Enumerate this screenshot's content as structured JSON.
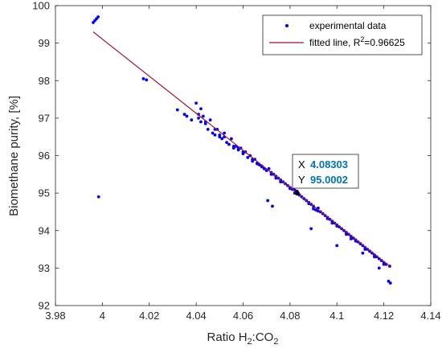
{
  "chart_data": {
    "type": "scatter",
    "xlabel": "Ratio H",
    "xlabel_sub": "2",
    "xlabel_mid": ":CO",
    "xlabel_sub2": "2",
    "ylabel": "Biomethane purity, [%]",
    "xlim": [
      3.98,
      4.14
    ],
    "ylim": [
      92,
      100
    ],
    "x_ticks": [
      3.98,
      4,
      4.02,
      4.04,
      4.06,
      4.08,
      4.1,
      4.12,
      4.14
    ],
    "x_tick_labels": [
      "3.98",
      "4",
      "4.02",
      "4.04",
      "4.06",
      "4.08",
      "4.1",
      "4.12",
      "4.14"
    ],
    "y_ticks": [
      92,
      93,
      94,
      95,
      96,
      97,
      98,
      99,
      100
    ],
    "y_tick_labels": [
      "92",
      "93",
      "94",
      "95",
      "96",
      "97",
      "98",
      "99",
      "100"
    ],
    "grid": false,
    "legend_position": "top-right",
    "series": [
      {
        "name": "experimental data",
        "kind": "scatter",
        "color": "#0000ff",
        "x": [
          3.9961,
          3.9968,
          3.9975,
          3.9982,
          3.9984,
          4.0175,
          4.0188,
          4.032,
          4.035,
          4.036,
          4.038,
          4.04,
          4.041,
          4.042,
          4.043,
          4.044,
          4.045,
          4.046,
          4.047,
          4.048,
          4.049,
          4.05,
          4.051,
          4.052,
          4.053,
          4.054,
          4.055,
          4.056,
          4.057,
          4.058,
          4.059,
          4.06,
          4.061,
          4.062,
          4.063,
          4.064,
          4.065,
          4.066,
          4.067,
          4.068,
          4.069,
          4.07,
          4.071,
          4.072,
          4.073,
          4.074,
          4.075,
          4.076,
          4.077,
          4.078,
          4.079,
          4.08,
          4.081,
          4.082,
          4.083,
          4.084,
          4.085,
          4.086,
          4.087,
          4.088,
          4.089,
          4.09,
          4.091,
          4.092,
          4.093,
          4.094,
          4.095,
          4.096,
          4.097,
          4.098,
          4.099,
          4.1,
          4.101,
          4.102,
          4.103,
          4.104,
          4.105,
          4.106,
          4.107,
          4.108,
          4.109,
          4.11,
          4.111,
          4.112,
          4.113,
          4.114,
          4.115,
          4.116,
          4.117,
          4.118,
          4.119,
          4.12,
          4.121,
          4.1225,
          4.041,
          4.044,
          4.048,
          4.052,
          4.056,
          4.06,
          4.064,
          4.068,
          4.072,
          4.076,
          4.08,
          4.084,
          4.088,
          4.092,
          4.096,
          4.1,
          4.104,
          4.108,
          4.112,
          4.116,
          4.12,
          4.042,
          4.05,
          4.058,
          4.066,
          4.074,
          4.082,
          4.09,
          4.098,
          4.106,
          4.114,
          4.0705,
          4.0725,
          4.089,
          4.1,
          4.111,
          4.118,
          4.122,
          4.1228
        ],
        "y": [
          99.55,
          99.6,
          99.65,
          99.7,
          94.9,
          98.05,
          98.02,
          97.22,
          97.1,
          97.05,
          96.95,
          97.4,
          97.0,
          96.9,
          97.05,
          96.85,
          96.7,
          96.95,
          96.6,
          96.55,
          96.7,
          96.5,
          96.45,
          96.6,
          96.35,
          96.3,
          96.45,
          96.2,
          96.25,
          96.15,
          96.2,
          96.05,
          96.1,
          95.95,
          96.0,
          95.85,
          95.9,
          95.8,
          95.75,
          95.7,
          95.65,
          95.6,
          95.65,
          95.55,
          95.5,
          95.45,
          95.4,
          95.35,
          95.3,
          95.25,
          95.2,
          95.15,
          95.1,
          95.0,
          95.05,
          94.95,
          94.9,
          94.85,
          94.8,
          94.75,
          94.7,
          94.65,
          94.55,
          94.6,
          94.5,
          94.45,
          94.4,
          94.35,
          94.3,
          94.25,
          94.2,
          94.15,
          94.1,
          94.05,
          94.0,
          93.95,
          93.9,
          93.85,
          93.8,
          93.75,
          93.7,
          93.65,
          93.6,
          93.55,
          93.5,
          93.45,
          93.4,
          93.35,
          93.3,
          93.25,
          93.2,
          93.15,
          93.1,
          93.05,
          97.1,
          96.9,
          96.7,
          96.5,
          96.25,
          96.1,
          95.9,
          95.72,
          95.5,
          95.3,
          95.12,
          94.95,
          94.72,
          94.52,
          94.32,
          94.12,
          93.9,
          93.72,
          93.5,
          93.3,
          93.1,
          97.25,
          96.55,
          96.2,
          95.78,
          95.4,
          95.08,
          94.58,
          94.2,
          93.78,
          93.45,
          94.8,
          94.65,
          94.05,
          93.6,
          93.4,
          93.0,
          92.65,
          92.6
        ]
      },
      {
        "name": "fitted line, R",
        "name_sup": "2",
        "name_suffix": "=0.96625",
        "kind": "line",
        "color": "#a2142f",
        "x": [
          3.9961,
          4.1225
        ],
        "y": [
          99.3,
          93.05
        ]
      }
    ],
    "datatip": {
      "x_label": "X",
      "x_value": "4.08303",
      "y_label": "Y",
      "y_value": "95.0002",
      "x": 4.08303,
      "y": 95.0002
    }
  }
}
